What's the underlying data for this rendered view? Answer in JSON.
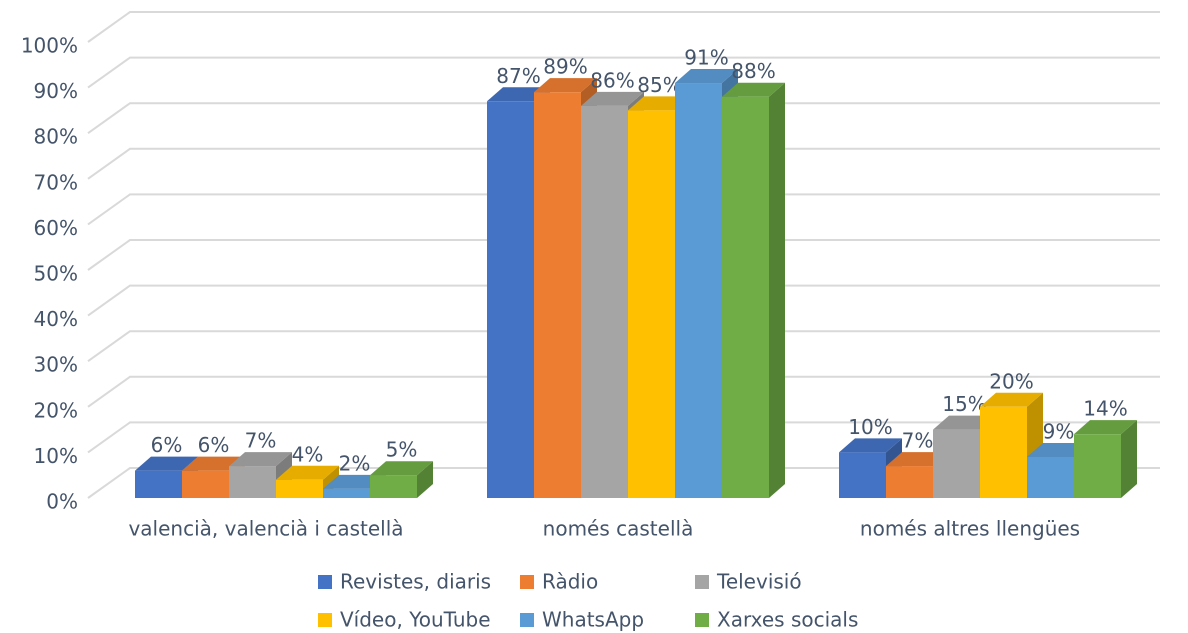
{
  "chart_data": {
    "type": "bar3d",
    "categories": [
      "valencià, valencià i castellà",
      "només castellà",
      "només altres llengües"
    ],
    "series": [
      {
        "name": "Revistes, diaris",
        "color": "#4472c4",
        "values": [
          6,
          87,
          10
        ],
        "value_labels": [
          "6%",
          "87%",
          "10%"
        ]
      },
      {
        "name": "Ràdio",
        "color": "#ed7d31",
        "values": [
          6,
          89,
          7
        ],
        "value_labels": [
          "6%",
          "89%",
          "7%"
        ]
      },
      {
        "name": "Televisió",
        "color": "#a5a5a5",
        "values": [
          7,
          86,
          15
        ],
        "value_labels": [
          "7%",
          "86%",
          "15%"
        ]
      },
      {
        "name": "Vídeo, YouTube",
        "color": "#ffc000",
        "values": [
          4,
          85,
          20
        ],
        "value_labels": [
          "4%",
          "85%",
          "20%"
        ]
      },
      {
        "name": "WhatsApp",
        "color": "#5b9bd5",
        "values": [
          2,
          91,
          9
        ],
        "value_labels": [
          "2%",
          "91%",
          "9%"
        ]
      },
      {
        "name": "Xarxes socials",
        "color": "#70ad47",
        "values": [
          5,
          88,
          14
        ],
        "value_labels": [
          "5%",
          "88%",
          "14%"
        ]
      }
    ],
    "ylim": [
      0,
      100
    ],
    "yticks": [
      {
        "value": 0,
        "label": "0%"
      },
      {
        "value": 10,
        "label": "10%"
      },
      {
        "value": 20,
        "label": "20%"
      },
      {
        "value": 30,
        "label": "30%"
      },
      {
        "value": 40,
        "label": "40%"
      },
      {
        "value": 50,
        "label": "50%"
      },
      {
        "value": 60,
        "label": "60%"
      },
      {
        "value": 70,
        "label": "70%"
      },
      {
        "value": 80,
        "label": "80%"
      },
      {
        "value": 90,
        "label": "90%"
      },
      {
        "value": 100,
        "label": "100%"
      }
    ],
    "grid": true,
    "legend": "bottom"
  }
}
